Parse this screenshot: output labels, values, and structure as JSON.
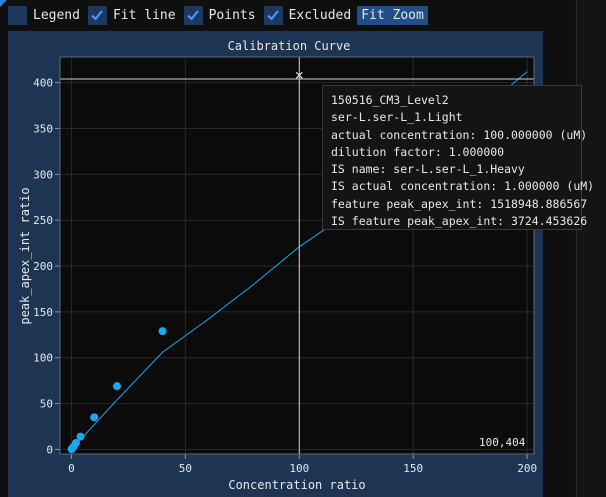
{
  "toolbar": {
    "items": [
      {
        "label": "Legend",
        "checked": false
      },
      {
        "label": "Fit line",
        "checked": true
      },
      {
        "label": "Points",
        "checked": true
      },
      {
        "label": "Excluded",
        "checked": true
      }
    ],
    "fit_zoom_label": "Fit Zoom"
  },
  "cursor_readout": "100,404",
  "tooltip": {
    "lines": [
      "150516_CM3_Level2",
      "ser-L.ser-L_1.Light",
      "actual concentration: 100.000000 (uM)",
      "dilution factor: 1.000000",
      "IS name: ser-L.ser-L_1.Heavy",
      "IS actual concentration: 1.000000 (uM)",
      "feature peak_apex_int: 1518948.886567",
      "IS feature peak_apex_int: 3724.453626"
    ]
  },
  "colors": {
    "accent": "#1aa8ef",
    "panel": "#1d3452",
    "plot_bg": "#0b0b0b"
  },
  "chart_data": {
    "type": "scatter",
    "title": "Calibration Curve",
    "xlabel": "Concentration ratio",
    "ylabel": "peak_apex_int ratio",
    "xlim": [
      -5,
      203
    ],
    "ylim": [
      -5,
      428
    ],
    "x_ticks": [
      0,
      50,
      100,
      150,
      200
    ],
    "y_ticks": [
      0,
      50,
      100,
      150,
      200,
      250,
      300,
      350,
      400
    ],
    "grid": true,
    "points": [
      {
        "x": 0.1,
        "y": 0.3
      },
      {
        "x": 0.2,
        "y": 0.6
      },
      {
        "x": 0.5,
        "y": 1.5
      },
      {
        "x": 1,
        "y": 3
      },
      {
        "x": 2,
        "y": 7
      },
      {
        "x": 4,
        "y": 14
      },
      {
        "x": 10,
        "y": 35
      },
      {
        "x": 20,
        "y": 69
      },
      {
        "x": 40,
        "y": 129
      }
    ],
    "excluded_points": [
      {
        "x": 100,
        "y": 408
      }
    ],
    "fit_line": {
      "x": [
        0,
        20,
        40,
        60,
        80,
        100,
        120,
        140,
        160,
        180,
        200
      ],
      "y": [
        0,
        54,
        106,
        142,
        180,
        221,
        255,
        290,
        325,
        370,
        412
      ]
    },
    "crosshair": {
      "x": 100,
      "y": 404
    }
  }
}
